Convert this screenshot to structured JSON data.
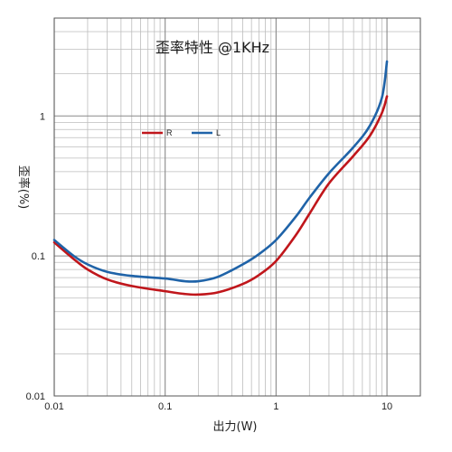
{
  "chart_data": {
    "type": "line",
    "title": "歪率特性 @1KHz",
    "xlabel": "出力(W)",
    "ylabel": "歪率(%)",
    "x_scale": "log",
    "y_scale": "log",
    "xlim": [
      0.01,
      20
    ],
    "ylim": [
      0.01,
      5
    ],
    "x_ticks": [
      0.01,
      0.1,
      1,
      10
    ],
    "x_tick_labels": [
      "0.01",
      "0.1",
      "1",
      "10"
    ],
    "y_ticks": [
      0.01,
      0.1,
      1
    ],
    "y_tick_labels": [
      "0.01",
      "0.1",
      "1"
    ],
    "grid": true,
    "legend_position": "upper-left-inside",
    "series": [
      {
        "name": "R",
        "color": "#c0161b",
        "x": [
          0.01,
          0.015,
          0.02,
          0.03,
          0.05,
          0.1,
          0.15,
          0.2,
          0.3,
          0.5,
          0.7,
          1,
          1.5,
          2,
          3,
          5,
          7,
          9,
          10
        ],
        "y": [
          0.125,
          0.095,
          0.08,
          0.068,
          0.061,
          0.056,
          0.0535,
          0.053,
          0.055,
          0.063,
          0.073,
          0.092,
          0.14,
          0.2,
          0.33,
          0.52,
          0.72,
          1.05,
          1.38
        ]
      },
      {
        "name": "L",
        "color": "#1f63a8",
        "x": [
          0.01,
          0.015,
          0.02,
          0.03,
          0.05,
          0.1,
          0.15,
          0.2,
          0.3,
          0.5,
          0.7,
          1,
          1.5,
          2,
          3,
          5,
          7,
          9,
          10
        ],
        "y": [
          0.13,
          0.1,
          0.087,
          0.077,
          0.072,
          0.069,
          0.066,
          0.066,
          0.071,
          0.087,
          0.103,
          0.13,
          0.19,
          0.26,
          0.39,
          0.6,
          0.85,
          1.35,
          2.45
        ]
      }
    ]
  }
}
